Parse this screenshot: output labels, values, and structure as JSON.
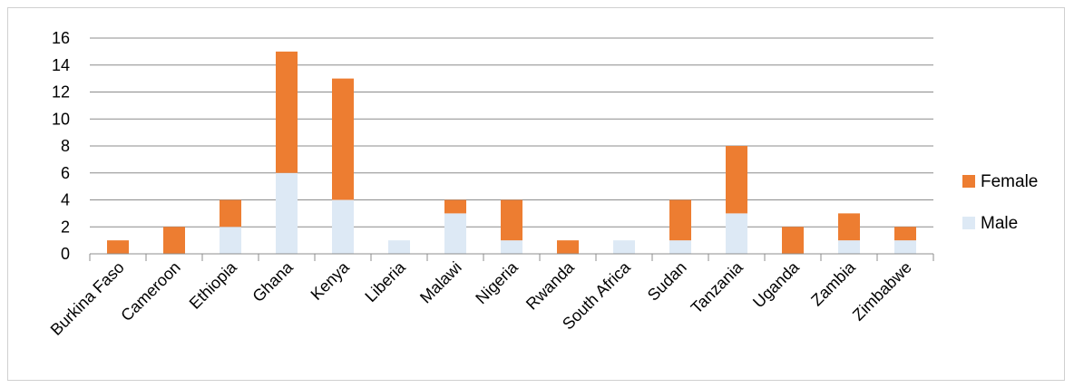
{
  "chart_data": {
    "type": "bar",
    "stacked": true,
    "categories": [
      "Burkina Faso",
      "Cameroon",
      "Ethiopia",
      "Ghana",
      "Kenya",
      "Liberia",
      "Malawi",
      "Nigeria",
      "Rwanda",
      "South Africa",
      "Sudan",
      "Tanzania",
      "Uganda",
      "Zambia",
      "Zimbabwe"
    ],
    "series": [
      {
        "name": "Male",
        "color": "#dde9f5",
        "values": [
          0,
          0,
          2,
          6,
          4,
          1,
          3,
          1,
          0,
          1,
          1,
          3,
          0,
          1,
          1
        ]
      },
      {
        "name": "Female",
        "color": "#ed7d31",
        "values": [
          1,
          2,
          2,
          9,
          9,
          0,
          1,
          3,
          1,
          0,
          3,
          5,
          2,
          2,
          1
        ]
      }
    ],
    "ylim": [
      0,
      16
    ],
    "yticks": [
      0,
      2,
      4,
      6,
      8,
      10,
      12,
      14,
      16
    ],
    "grid": true,
    "legend": "right"
  }
}
